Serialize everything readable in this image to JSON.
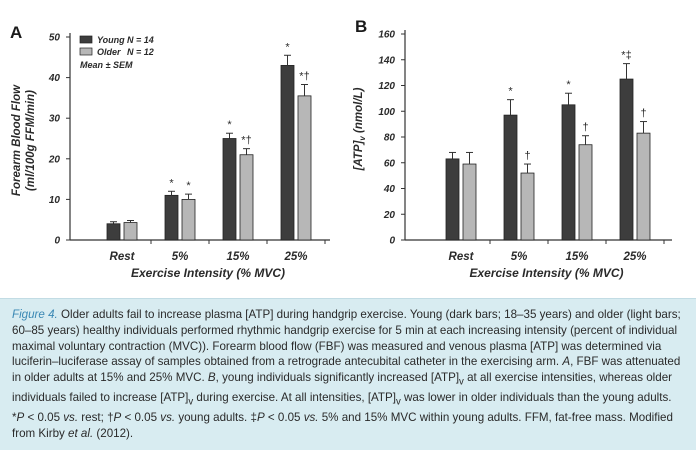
{
  "colors": {
    "young": "#3d3d3d",
    "older": "#b7b7b7",
    "caption_bg": "#d8ecf1",
    "fig_label": "#3a88b4"
  },
  "chart_data": [
    {
      "panel": "A",
      "type": "bar",
      "categories": [
        "Rest",
        "5%",
        "15%",
        "25%"
      ],
      "xlabel": "Exercise Intensity (% MVC)",
      "ylabel_line1": "Forearm Blood Flow",
      "ylabel_line2": "(ml/100g FFM/min)",
      "ylim": [
        0,
        50
      ],
      "yticks": [
        "0",
        "10",
        "20",
        "30",
        "40",
        "50"
      ],
      "grid": false,
      "legend_position": "top-left",
      "legend_note": "Mean ± SEM",
      "series": [
        {
          "name": "Young",
          "n": "N = 14",
          "values": [
            4,
            11,
            25,
            43
          ],
          "errors": [
            0.5,
            1,
            1.3,
            2.5
          ],
          "markers": [
            "",
            "*",
            "*",
            "*"
          ]
        },
        {
          "name": "Older",
          "n": "N = 12",
          "values": [
            4.3,
            10,
            21,
            35.5
          ],
          "errors": [
            0.5,
            1.3,
            1.5,
            2.8
          ],
          "markers": [
            "",
            "*",
            "*†",
            "*†"
          ]
        }
      ]
    },
    {
      "panel": "B",
      "type": "bar",
      "categories": [
        "Rest",
        "5%",
        "15%",
        "25%"
      ],
      "xlabel": "Exercise Intensity (% MVC)",
      "ylabel_main": "[ATP]",
      "ylabel_sub": "v",
      "ylabel_rest": " (nmol/L)",
      "ylim": [
        0,
        160
      ],
      "yticks": [
        "0",
        "20",
        "40",
        "60",
        "80",
        "100",
        "120",
        "140",
        "160"
      ],
      "grid": false,
      "series": [
        {
          "name": "Young",
          "values": [
            63,
            97,
            105,
            125
          ],
          "errors": [
            5,
            12,
            9,
            12
          ],
          "markers": [
            "",
            "*",
            "*",
            "*‡"
          ]
        },
        {
          "name": "Older",
          "values": [
            59,
            52,
            74,
            83
          ],
          "errors": [
            9,
            7,
            7,
            9
          ],
          "markers": [
            "",
            "†",
            "†",
            "†"
          ]
        }
      ]
    }
  ],
  "caption": {
    "label": "Figure 4.",
    "p1": " Older adults fail to increase plasma [ATP] during handgrip exercise. Young (dark bars; 18–35 years) and older (light bars; 60–85 years) healthy individuals performed rhythmic handgrip exercise for 5 min at each increasing intensity (percent of individual maximal voluntary contraction (MVC)). Forearm blood flow (FBF) was measured and venous plasma [ATP] was determined via luciferin–luciferase assay of samples obtained from a retrograde antecubital catheter in the exercising arm. ",
    "a": "A",
    "p2": ", FBF was attenuated in older adults at 15% and 25% MVC. ",
    "b": "B",
    "p3": ", young individuals significantly increased [ATP]",
    "v1": "v",
    "p4": " at all exercise intensities, whereas older individuals failed to increase [ATP]",
    "v2": "v",
    "p5": " during exercise. At all intensities, [ATP]",
    "v3": "v",
    "p6": " was lower in older individuals than the young adults. *",
    "pa": "P",
    "p7": " < 0.05 ",
    "vs1": "vs.",
    "p8": " rest; †",
    "pb": "P",
    "p9": " < 0.05 ",
    "vs2": "vs.",
    "p10": " young adults. ‡",
    "pc": "P",
    "p11": " < 0.05 ",
    "vs3": "vs.",
    "p12": " 5% and 15% MVC within young adults. FFM, fat-free mass. Modified from Kirby ",
    "etal": "et al.",
    "p13": " (2012)."
  }
}
